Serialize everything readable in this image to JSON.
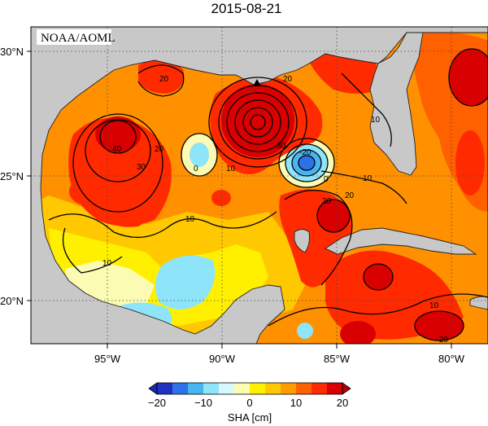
{
  "title": "2015-08-21",
  "credit": "NOAA/AOML",
  "map": {
    "lat_ticks": [
      "30°N",
      "25°N",
      "20°N"
    ],
    "lon_ticks": [
      "95°W",
      "90°W",
      "85°W",
      "80°W"
    ],
    "lon_range": [
      -98.3,
      -78.3
    ],
    "lat_range": [
      18.3,
      31.0
    ],
    "contour_labels": [
      "40",
      "30",
      "20",
      "10",
      "10",
      "20",
      "0",
      "10",
      "20",
      "30",
      "-20",
      "0",
      "10",
      "20",
      "30",
      "10",
      "20",
      "10"
    ],
    "marker": "triangle-marker"
  },
  "colorbar": {
    "label": "SHA [cm]",
    "ticks": [
      "−20",
      "−10",
      "0",
      "10",
      "20"
    ],
    "colors": [
      "#2030c0",
      "#2e72e8",
      "#48b4f0",
      "#8ee4f8",
      "#d8f8ff",
      "#fbfbb4",
      "#fff000",
      "#ffc800",
      "#ff9c00",
      "#ff6000",
      "#ff2a00",
      "#d80000"
    ]
  },
  "chart_data": {
    "type": "heatmap",
    "title": "2015-08-21",
    "variable": "SHA [cm]",
    "value_range": [
      -20,
      20
    ],
    "colorbar_ticks": [
      -20,
      -10,
      0,
      10,
      20
    ],
    "lon_ticks": [
      -95,
      -90,
      -85,
      -80
    ],
    "lat_ticks": [
      30,
      25,
      20
    ]
  }
}
